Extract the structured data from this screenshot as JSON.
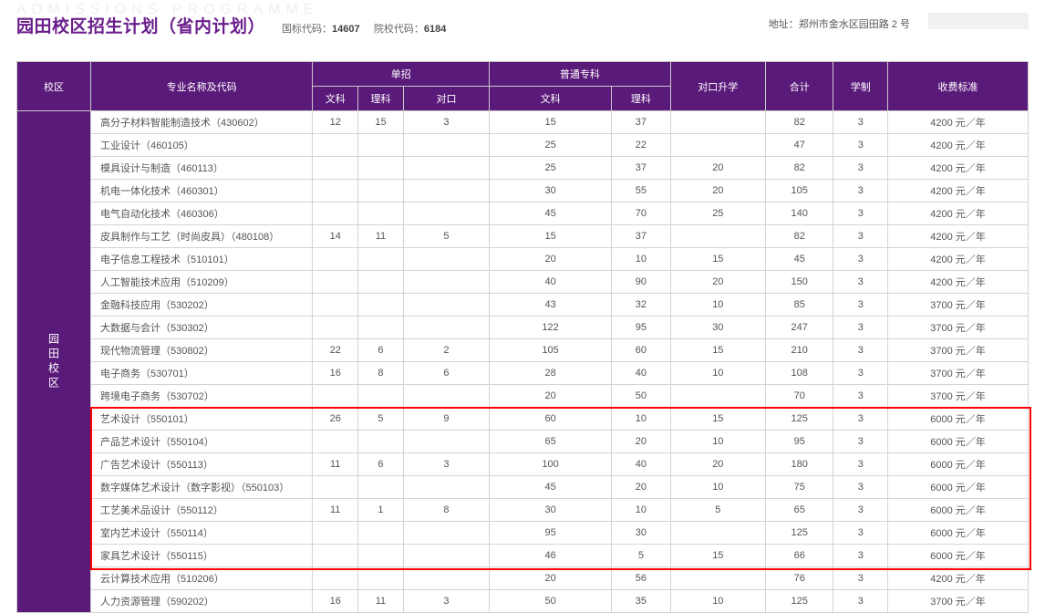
{
  "watermark": "ADMISSIONS PROGRAMME",
  "title": "园田校区招生计划（省内计划）",
  "code1_label": "国标代码：",
  "code1_value": "14607",
  "code2_label": "院校代码：",
  "code2_value": "6184",
  "address": "地址：郑州市金水区园田路 2 号",
  "campus_name": "园田校区",
  "colors": {
    "header_bg": "#5a1a7a",
    "title_color": "#6b1e8c",
    "border_color": "#d4d4d4",
    "highlight_border": "#ff0000"
  },
  "headers": {
    "campus": "校区",
    "major": "专业名称及代码",
    "single_group": "单招",
    "single_wen": "文科",
    "single_li": "理科",
    "single_dui": "对口",
    "general_group": "普通专科",
    "general_wen": "文科",
    "general_li": "理科",
    "duikou_up": "对口升学",
    "total": "合计",
    "years": "学制",
    "fee": "收费标准"
  },
  "rows": [
    {
      "major": "高分子材料智能制造技术（430602）",
      "sw": "12",
      "sl": "15",
      "sd": "3",
      "gw": "15",
      "gl": "37",
      "dk": "",
      "tot": "82",
      "yr": "3",
      "fee": "4200 元／年"
    },
    {
      "major": "工业设计（460105）",
      "sw": "",
      "sl": "",
      "sd": "",
      "gw": "25",
      "gl": "22",
      "dk": "",
      "tot": "47",
      "yr": "3",
      "fee": "4200 元／年"
    },
    {
      "major": "模具设计与制造（460113）",
      "sw": "",
      "sl": "",
      "sd": "",
      "gw": "25",
      "gl": "37",
      "dk": "20",
      "tot": "82",
      "yr": "3",
      "fee": "4200 元／年"
    },
    {
      "major": "机电一体化技术（460301）",
      "sw": "",
      "sl": "",
      "sd": "",
      "gw": "30",
      "gl": "55",
      "dk": "20",
      "tot": "105",
      "yr": "3",
      "fee": "4200 元／年"
    },
    {
      "major": "电气自动化技术（460306）",
      "sw": "",
      "sl": "",
      "sd": "",
      "gw": "45",
      "gl": "70",
      "dk": "25",
      "tot": "140",
      "yr": "3",
      "fee": "4200 元／年"
    },
    {
      "major": "皮具制作与工艺（时尚皮具）（480108）",
      "sw": "14",
      "sl": "11",
      "sd": "5",
      "gw": "15",
      "gl": "37",
      "dk": "",
      "tot": "82",
      "yr": "3",
      "fee": "4200 元／年"
    },
    {
      "major": "电子信息工程技术（510101）",
      "sw": "",
      "sl": "",
      "sd": "",
      "gw": "20",
      "gl": "10",
      "dk": "15",
      "tot": "45",
      "yr": "3",
      "fee": "4200 元／年"
    },
    {
      "major": "人工智能技术应用（510209）",
      "sw": "",
      "sl": "",
      "sd": "",
      "gw": "40",
      "gl": "90",
      "dk": "20",
      "tot": "150",
      "yr": "3",
      "fee": "4200 元／年"
    },
    {
      "major": "金融科技应用（530202）",
      "sw": "",
      "sl": "",
      "sd": "",
      "gw": "43",
      "gl": "32",
      "dk": "10",
      "tot": "85",
      "yr": "3",
      "fee": "3700 元／年"
    },
    {
      "major": "大数据与会计（530302）",
      "sw": "",
      "sl": "",
      "sd": "",
      "gw": "122",
      "gl": "95",
      "dk": "30",
      "tot": "247",
      "yr": "3",
      "fee": "3700 元／年"
    },
    {
      "major": "现代物流管理（530802）",
      "sw": "22",
      "sl": "6",
      "sd": "2",
      "gw": "105",
      "gl": "60",
      "dk": "15",
      "tot": "210",
      "yr": "3",
      "fee": "3700 元／年"
    },
    {
      "major": "电子商务（530701）",
      "sw": "16",
      "sl": "8",
      "sd": "6",
      "gw": "28",
      "gl": "40",
      "dk": "10",
      "tot": "108",
      "yr": "3",
      "fee": "3700 元／年"
    },
    {
      "major": "跨境电子商务（530702）",
      "sw": "",
      "sl": "",
      "sd": "",
      "gw": "20",
      "gl": "50",
      "dk": "",
      "tot": "70",
      "yr": "3",
      "fee": "3700 元／年"
    },
    {
      "major": "艺术设计（550101）",
      "sw": "26",
      "sl": "5",
      "sd": "9",
      "gw": "60",
      "gl": "10",
      "dk": "15",
      "tot": "125",
      "yr": "3",
      "fee": "6000 元／年"
    },
    {
      "major": "产品艺术设计（550104）",
      "sw": "",
      "sl": "",
      "sd": "",
      "gw": "65",
      "gl": "20",
      "dk": "10",
      "tot": "95",
      "yr": "3",
      "fee": "6000 元／年"
    },
    {
      "major": "广告艺术设计（550113）",
      "sw": "11",
      "sl": "6",
      "sd": "3",
      "gw": "100",
      "gl": "40",
      "dk": "20",
      "tot": "180",
      "yr": "3",
      "fee": "6000 元／年"
    },
    {
      "major": "数字媒体艺术设计（数字影视）（550103）",
      "sw": "",
      "sl": "",
      "sd": "",
      "gw": "45",
      "gl": "20",
      "dk": "10",
      "tot": "75",
      "yr": "3",
      "fee": "6000 元／年"
    },
    {
      "major": "工艺美术品设计（550112）",
      "sw": "11",
      "sl": "1",
      "sd": "8",
      "gw": "30",
      "gl": "10",
      "dk": "5",
      "tot": "65",
      "yr": "3",
      "fee": "6000 元／年"
    },
    {
      "major": "室内艺术设计（550114）",
      "sw": "",
      "sl": "",
      "sd": "",
      "gw": "95",
      "gl": "30",
      "dk": "",
      "tot": "125",
      "yr": "3",
      "fee": "6000 元／年"
    },
    {
      "major": "家具艺术设计（550115）",
      "sw": "",
      "sl": "",
      "sd": "",
      "gw": "46",
      "gl": "5",
      "dk": "15",
      "tot": "66",
      "yr": "3",
      "fee": "6000 元／年"
    },
    {
      "major": "云计算技术应用（510206）",
      "sw": "",
      "sl": "",
      "sd": "",
      "gw": "20",
      "gl": "56",
      "dk": "",
      "tot": "76",
      "yr": "3",
      "fee": "4200 元／年"
    },
    {
      "major": "人力资源管理（590202）",
      "sw": "16",
      "sl": "11",
      "sd": "3",
      "gw": "50",
      "gl": "35",
      "dk": "10",
      "tot": "125",
      "yr": "3",
      "fee": "3700 元／年"
    }
  ],
  "highlight": {
    "start_row_index": 13,
    "end_row_index": 19
  },
  "column_widths": {
    "campus": 70,
    "major": 245,
    "sw": 50,
    "sl": 50,
    "sd": 95,
    "gw": 135,
    "gl": 65,
    "dk": 105,
    "tot": 75,
    "yr": 60,
    "fee": 155
  }
}
